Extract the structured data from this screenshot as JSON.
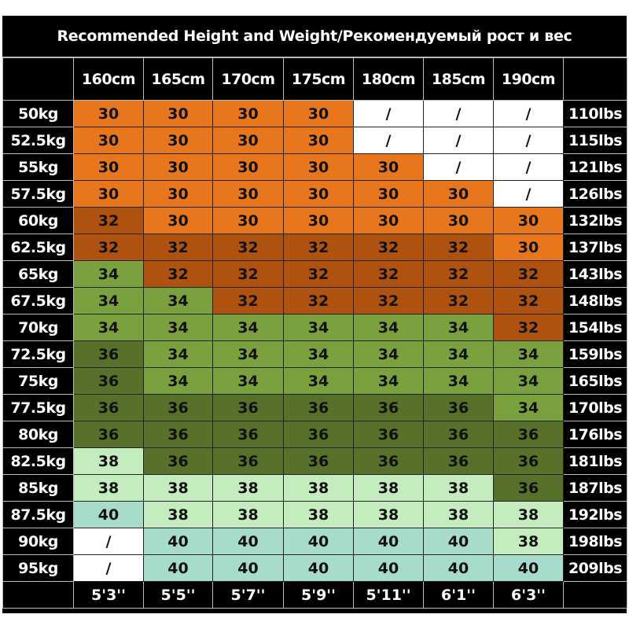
{
  "chart_data": {
    "type": "table",
    "title": "Recommended Height and Weight/Рекомендуемый рост и вес",
    "columns_cm": [
      "160cm",
      "165cm",
      "170cm",
      "175cm",
      "180cm",
      "185cm",
      "190cm"
    ],
    "columns_ft": [
      "5'3''",
      "5'5''",
      "5'7''",
      "5'9''",
      "5'11''",
      "6'1''",
      "6'3''"
    ],
    "rows_kg": [
      "50kg",
      "52.5kg",
      "55kg",
      "57.5kg",
      "60kg",
      "62.5kg",
      "65kg",
      "67.5kg",
      "70kg",
      "72.5kg",
      "75kg",
      "77.5kg",
      "80kg",
      "82.5kg",
      "85kg",
      "87.5kg",
      "90kg",
      "95kg"
    ],
    "rows_lbs": [
      "110lbs",
      "115lbs",
      "121lbs",
      "126lbs",
      "132lbs",
      "137lbs",
      "143lbs",
      "148lbs",
      "154lbs",
      "159lbs",
      "165lbs",
      "170lbs",
      "176lbs",
      "181lbs",
      "187lbs",
      "192lbs",
      "198lbs",
      "209lbs"
    ],
    "values": [
      [
        "30",
        "30",
        "30",
        "30",
        "/",
        "/",
        "/"
      ],
      [
        "30",
        "30",
        "30",
        "30",
        "/",
        "/",
        "/"
      ],
      [
        "30",
        "30",
        "30",
        "30",
        "30",
        "/",
        "/"
      ],
      [
        "30",
        "30",
        "30",
        "30",
        "30",
        "30",
        "/"
      ],
      [
        "32",
        "30",
        "30",
        "30",
        "30",
        "30",
        "30"
      ],
      [
        "32",
        "32",
        "32",
        "32",
        "32",
        "32",
        "30"
      ],
      [
        "34",
        "32",
        "32",
        "32",
        "32",
        "32",
        "32"
      ],
      [
        "34",
        "34",
        "32",
        "32",
        "32",
        "32",
        "32"
      ],
      [
        "34",
        "34",
        "34",
        "34",
        "34",
        "34",
        "32"
      ],
      [
        "36",
        "34",
        "34",
        "34",
        "34",
        "34",
        "34"
      ],
      [
        "36",
        "34",
        "34",
        "34",
        "34",
        "34",
        "34"
      ],
      [
        "36",
        "36",
        "36",
        "36",
        "36",
        "36",
        "34"
      ],
      [
        "36",
        "36",
        "36",
        "36",
        "36",
        "36",
        "36"
      ],
      [
        "38",
        "36",
        "36",
        "36",
        "36",
        "36",
        "36"
      ],
      [
        "38",
        "38",
        "38",
        "38",
        "38",
        "38",
        "36"
      ],
      [
        "40",
        "38",
        "38",
        "38",
        "38",
        "38",
        "38"
      ],
      [
        "/",
        "40",
        "40",
        "40",
        "40",
        "40",
        "38"
      ],
      [
        "/",
        "40",
        "40",
        "40",
        "40",
        "40",
        "40"
      ]
    ],
    "size_colors": {
      "30": "#E8761C",
      "32": "#B0520F",
      "34": "#7BA03E",
      "36": "#57702A",
      "38": "#C4ECBF",
      "40": "#A7DBCB",
      "/": "#FFFFFF"
    },
    "header_background": "#000000",
    "header_text_color": "#FFFFFF"
  }
}
